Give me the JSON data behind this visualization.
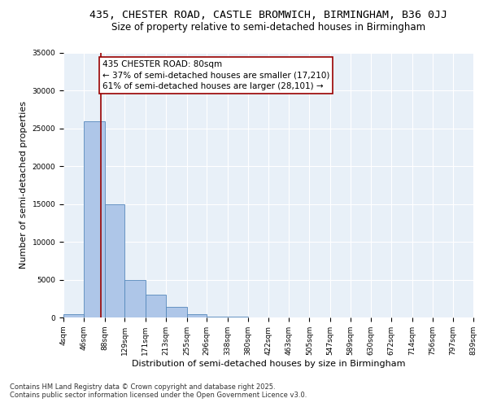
{
  "title1": "435, CHESTER ROAD, CASTLE BROMWICH, BIRMINGHAM, B36 0JJ",
  "title2": "Size of property relative to semi-detached houses in Birmingham",
  "xlabel": "Distribution of semi-detached houses by size in Birmingham",
  "ylabel": "Number of semi-detached properties",
  "bin_edges": [
    4,
    46,
    88,
    129,
    171,
    213,
    255,
    296,
    338,
    380,
    422,
    463,
    505,
    547,
    589,
    630,
    672,
    714,
    756,
    797,
    839
  ],
  "bin_counts": [
    400,
    26000,
    15000,
    5000,
    3000,
    1400,
    400,
    150,
    80,
    50,
    30,
    20,
    12,
    8,
    5,
    4,
    3,
    2,
    1,
    1
  ],
  "bar_color": "#aec6e8",
  "bar_edge_color": "#5588bb",
  "property_size": 80,
  "vline_color": "#990000",
  "annotation_line1": "435 CHESTER ROAD: 80sqm",
  "annotation_line2": "← 37% of semi-detached houses are smaller (17,210)",
  "annotation_line3": "61% of semi-detached houses are larger (28,101) →",
  "annotation_box_color": "white",
  "annotation_border_color": "#990000",
  "ylim": [
    0,
    35000
  ],
  "yticks": [
    0,
    5000,
    10000,
    15000,
    20000,
    25000,
    30000,
    35000
  ],
  "bg_color": "#e8f0f8",
  "footnote1": "Contains HM Land Registry data © Crown copyright and database right 2025.",
  "footnote2": "Contains public sector information licensed under the Open Government Licence v3.0.",
  "title1_fontsize": 9.5,
  "title2_fontsize": 8.5,
  "axis_label_fontsize": 8,
  "tick_fontsize": 6.5,
  "annotation_fontsize": 7.5,
  "footnote_fontsize": 6
}
